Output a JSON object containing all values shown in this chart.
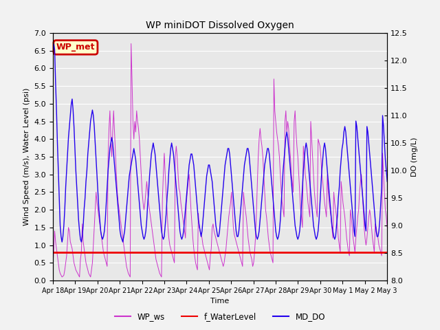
{
  "title": "WP miniDOT Dissolved Oxygen",
  "xlabel": "Time",
  "ylabel_left": "Wind Speed (m/s), Water Level (psi)",
  "ylabel_right": "DO (mg/L)",
  "ylim_left": [
    0.0,
    7.0
  ],
  "ylim_right": [
    8.0,
    12.5
  ],
  "figure_bg": "#f2f2f2",
  "plot_bg": "#e8e8e8",
  "annotation_text": "WP_met",
  "annotation_bg": "#ffffcc",
  "annotation_border": "#cc0000",
  "waterlevel_value": 0.8,
  "waterlevel_color": "#ee0000",
  "ws_color": "#cc33cc",
  "do_color": "#2200ee",
  "legend_items": [
    "WP_ws",
    "f_WaterLevel",
    "MD_DO"
  ],
  "legend_colors": [
    "#cc33cc",
    "#ee0000",
    "#2200ee"
  ],
  "x_tick_labels": [
    "Apr 18",
    "Apr 19",
    "Apr 20",
    "Apr 21",
    "Apr 22",
    "Apr 23",
    "Apr 24",
    "Apr 25",
    "Apr 26",
    "Apr 27",
    "Apr 28",
    "Apr 29",
    "Apr 30",
    "May 1",
    "May 2",
    "May 3"
  ],
  "total_days": 15.0,
  "ws_data": [
    0.4,
    0.8,
    1.4,
    1.1,
    0.9,
    0.7,
    0.5,
    0.3,
    0.2,
    0.15,
    0.1,
    0.12,
    0.15,
    0.3,
    0.5,
    0.7,
    1.1,
    1.5,
    1.4,
    1.1,
    1.0,
    0.9,
    0.7,
    0.5,
    0.4,
    0.3,
    0.25,
    0.2,
    0.15,
    0.1,
    0.6,
    0.8,
    1.6,
    1.1,
    0.9,
    0.7,
    0.5,
    0.4,
    0.3,
    0.2,
    0.15,
    0.1,
    0.3,
    0.5,
    1.0,
    1.5,
    2.0,
    2.5,
    2.2,
    2.0,
    1.8,
    1.6,
    1.4,
    1.2,
    1.0,
    0.8,
    0.7,
    0.6,
    0.5,
    0.4,
    3.5,
    4.3,
    4.8,
    4.0,
    3.5,
    4.2,
    4.8,
    4.2,
    3.6,
    3.0,
    2.5,
    2.2,
    2.0,
    1.8,
    1.6,
    1.4,
    1.2,
    1.0,
    0.8,
    0.6,
    0.4,
    0.3,
    0.2,
    0.15,
    0.1,
    6.7,
    5.7,
    4.5,
    4.0,
    4.5,
    4.2,
    4.8,
    4.5,
    4.3,
    4.0,
    3.5,
    3.0,
    2.5,
    2.2,
    2.0,
    2.2,
    2.5,
    2.8,
    2.5,
    2.2,
    2.0,
    1.8,
    1.6,
    1.4,
    1.2,
    1.0,
    0.8,
    0.6,
    0.5,
    0.4,
    0.3,
    0.2,
    0.15,
    0.1,
    2.3,
    3.0,
    3.6,
    3.0,
    2.5,
    2.0,
    1.5,
    1.2,
    1.0,
    0.9,
    0.8,
    0.7,
    0.6,
    0.5,
    3.5,
    3.8,
    3.5,
    3.0,
    2.6,
    2.5,
    2.2,
    2.0,
    1.8,
    1.6,
    1.4,
    1.2,
    2.2,
    2.5,
    2.8,
    3.0,
    2.5,
    2.0,
    1.6,
    1.2,
    0.9,
    0.7,
    0.5,
    0.4,
    0.3,
    1.9,
    1.5,
    1.4,
    1.3,
    1.2,
    1.0,
    0.9,
    0.8,
    0.7,
    0.6,
    0.5,
    0.4,
    0.3,
    0.7,
    0.9,
    1.5,
    1.6,
    1.4,
    1.3,
    1.2,
    1.1,
    1.0,
    0.9,
    0.8,
    0.7,
    0.6,
    0.5,
    0.4,
    0.5,
    0.7,
    0.9,
    1.2,
    1.5,
    1.8,
    2.0,
    2.2,
    2.5,
    2.0,
    1.5,
    1.3,
    1.2,
    1.1,
    1.0,
    0.9,
    0.8,
    0.7,
    0.6,
    0.5,
    0.4,
    2.5,
    2.2,
    2.0,
    1.8,
    1.5,
    1.2,
    1.0,
    0.8,
    0.7,
    0.6,
    0.4,
    0.5,
    0.8,
    1.2,
    1.9,
    2.7,
    3.5,
    4.0,
    4.3,
    4.0,
    3.8,
    3.5,
    3.0,
    2.5,
    2.0,
    1.8,
    1.5,
    1.2,
    1.0,
    0.8,
    0.7,
    0.6,
    0.5,
    5.7,
    4.8,
    4.5,
    4.2,
    4.0,
    3.8,
    3.5,
    3.0,
    2.5,
    2.2,
    2.0,
    1.8,
    4.5,
    4.8,
    4.2,
    4.5,
    4.3,
    3.8,
    3.5,
    3.0,
    2.8,
    2.5,
    4.5,
    4.8,
    4.2,
    3.8,
    3.5,
    3.0,
    2.5,
    2.0,
    1.8,
    1.5,
    3.8,
    3.5,
    3.0,
    2.8,
    2.5,
    2.2,
    2.0,
    1.8,
    4.5,
    4.0,
    3.5,
    3.0,
    2.5,
    2.2,
    2.0,
    1.8,
    4.0,
    3.9,
    3.8,
    3.5,
    3.0,
    2.8,
    2.5,
    2.2,
    2.0,
    1.8,
    3.0,
    2.5,
    2.2,
    2.0,
    1.8,
    1.5,
    1.2,
    2.5,
    2.2,
    2.0,
    1.8,
    1.5,
    1.2,
    1.0,
    0.8,
    2.8,
    2.5,
    2.2,
    2.0,
    1.8,
    1.5,
    1.2,
    1.0,
    0.8,
    0.7,
    2.0,
    1.8,
    1.5,
    1.2,
    1.0,
    0.8,
    1.2,
    1.5,
    1.8,
    2.0,
    2.5,
    2.8,
    3.0,
    2.5,
    2.0,
    1.5,
    1.2,
    1.0,
    1.2,
    1.5,
    1.8,
    2.0,
    1.8,
    1.5,
    1.2,
    1.0,
    0.8,
    1.6,
    1.5,
    1.3,
    1.2,
    1.0,
    0.9,
    0.8,
    0.7,
    3.6,
    3.0,
    2.5,
    2.0,
    1.8,
    1.5
  ],
  "do_data": [
    12.1,
    12.3,
    12.2,
    11.6,
    11.1,
    10.5,
    10.0,
    9.5,
    9.0,
    8.8,
    8.7,
    8.8,
    9.0,
    9.3,
    9.7,
    10.0,
    10.3,
    10.6,
    10.8,
    11.0,
    11.2,
    11.3,
    11.1,
    10.8,
    10.4,
    10.0,
    9.7,
    9.4,
    9.1,
    8.9,
    8.75,
    8.7,
    8.8,
    9.0,
    9.3,
    9.5,
    9.8,
    10.0,
    10.3,
    10.5,
    10.7,
    10.9,
    11.0,
    11.1,
    11.0,
    10.8,
    10.5,
    10.2,
    9.9,
    9.6,
    9.3,
    9.1,
    8.9,
    8.8,
    8.75,
    8.8,
    8.9,
    9.1,
    9.4,
    9.7,
    10.0,
    10.2,
    10.4,
    10.5,
    10.6,
    10.5,
    10.3,
    10.1,
    9.9,
    9.7,
    9.5,
    9.3,
    9.1,
    8.9,
    8.8,
    8.75,
    8.7,
    8.8,
    8.9,
    9.1,
    9.3,
    9.5,
    9.7,
    9.9,
    10.0,
    10.1,
    10.2,
    10.3,
    10.4,
    10.3,
    10.2,
    10.0,
    9.8,
    9.6,
    9.4,
    9.2,
    9.0,
    8.9,
    8.8,
    8.75,
    8.8,
    8.9,
    9.1,
    9.4,
    9.6,
    9.9,
    10.1,
    10.3,
    10.4,
    10.5,
    10.4,
    10.3,
    10.1,
    9.9,
    9.7,
    9.5,
    9.3,
    9.1,
    8.9,
    8.8,
    8.75,
    8.8,
    9.0,
    9.2,
    9.5,
    9.7,
    10.0,
    10.2,
    10.4,
    10.5,
    10.4,
    10.3,
    10.1,
    9.9,
    9.7,
    9.5,
    9.3,
    9.1,
    8.9,
    8.8,
    8.75,
    8.8,
    8.9,
    9.1,
    9.3,
    9.5,
    9.7,
    9.9,
    10.1,
    10.2,
    10.3,
    10.3,
    10.2,
    10.1,
    9.9,
    9.7,
    9.5,
    9.3,
    9.1,
    9.0,
    8.9,
    8.8,
    8.9,
    9.1,
    9.3,
    9.5,
    9.7,
    9.9,
    10.0,
    10.1,
    10.1,
    10.0,
    9.9,
    9.8,
    9.6,
    9.4,
    9.2,
    9.0,
    8.9,
    8.8,
    8.8,
    8.9,
    9.1,
    9.3,
    9.5,
    9.7,
    9.9,
    10.1,
    10.2,
    10.3,
    10.4,
    10.4,
    10.3,
    10.1,
    9.9,
    9.7,
    9.5,
    9.3,
    9.1,
    8.9,
    8.8,
    8.8,
    8.9,
    9.1,
    9.3,
    9.5,
    9.7,
    9.9,
    10.1,
    10.2,
    10.3,
    10.4,
    10.4,
    10.3,
    10.1,
    9.9,
    9.7,
    9.5,
    9.3,
    9.1,
    8.9,
    8.8,
    8.75,
    8.8,
    8.9,
    9.1,
    9.3,
    9.5,
    9.7,
    9.9,
    10.1,
    10.2,
    10.3,
    10.4,
    10.4,
    10.3,
    10.1,
    9.9,
    9.7,
    9.5,
    9.3,
    9.1,
    8.9,
    8.8,
    8.75,
    8.8,
    8.9,
    9.1,
    9.4,
    9.7,
    10.0,
    10.2,
    10.4,
    10.6,
    10.7,
    10.6,
    10.4,
    10.2,
    10.0,
    9.8,
    9.6,
    9.4,
    9.2,
    9.0,
    8.9,
    8.8,
    8.75,
    8.8,
    8.9,
    9.1,
    9.4,
    9.7,
    10.0,
    10.2,
    10.4,
    10.5,
    10.4,
    10.2,
    10.0,
    9.8,
    9.6,
    9.4,
    9.2,
    9.0,
    8.9,
    8.8,
    8.75,
    8.8,
    8.9,
    9.1,
    9.4,
    9.7,
    10.0,
    10.2,
    10.4,
    10.5,
    10.4,
    10.2,
    10.0,
    9.8,
    9.6,
    9.4,
    9.2,
    9.0,
    8.9,
    8.8,
    8.75,
    8.8,
    9.0,
    9.2,
    9.5,
    9.7,
    10.0,
    10.2,
    10.4,
    10.5,
    10.7,
    10.8,
    10.7,
    10.5,
    10.3,
    10.1,
    9.9,
    9.7,
    9.5,
    9.3,
    9.1,
    8.9,
    8.8,
    10.9,
    10.8,
    10.6,
    10.4,
    10.2,
    10.0,
    9.8,
    9.6,
    9.4,
    9.2,
    9.0,
    8.9,
    10.8,
    10.7,
    10.5,
    10.3,
    10.1,
    9.9,
    9.7,
    9.5,
    9.3,
    9.1,
    8.9,
    8.8,
    8.8,
    8.9,
    9.1,
    9.4,
    9.7,
    11.0,
    10.8,
    10.5,
    10.2,
    10.0,
    9.8
  ]
}
